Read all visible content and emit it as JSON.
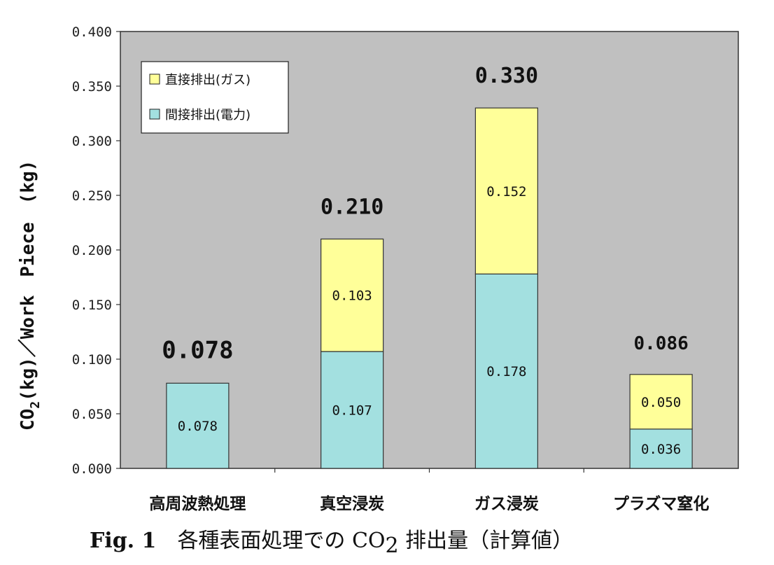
{
  "chart_data": {
    "type": "bar",
    "stacked": true,
    "categories": [
      "高周波熱処理",
      "真空浸炭",
      "ガス浸炭",
      "プラズマ窒化"
    ],
    "series": [
      {
        "name": "間接排出(電力)",
        "color": "#a3e0e0",
        "values": [
          0.078,
          0.107,
          0.178,
          0.036
        ],
        "labels": [
          "0.078",
          "0.107",
          "0.178",
          "0.036"
        ]
      },
      {
        "name": "直接排出(ガス)",
        "color": "#ffff99",
        "values": [
          0,
          0.103,
          0.152,
          0.05
        ],
        "labels": [
          "",
          "0.103",
          "0.152",
          "0.050"
        ]
      }
    ],
    "totals": [
      "0.078",
      "0.210",
      "0.330",
      "0.086"
    ],
    "ylim": [
      0,
      0.4
    ],
    "yticks": [
      "0.000",
      "0.050",
      "0.100",
      "0.150",
      "0.200",
      "0.250",
      "0.300",
      "0.350",
      "0.400"
    ],
    "ylabel": {
      "co": "CO",
      "sub": "2",
      "rest": "(kg)／Work　Piece　(kg)"
    },
    "legend_position": "top-left",
    "plot_background": "#c0c0c0",
    "grid": false
  },
  "caption": {
    "prefix": "Fig. 1",
    "text1": "各種表面処理での CO",
    "sub": "2",
    "text2": " 排出量（計算値）"
  }
}
